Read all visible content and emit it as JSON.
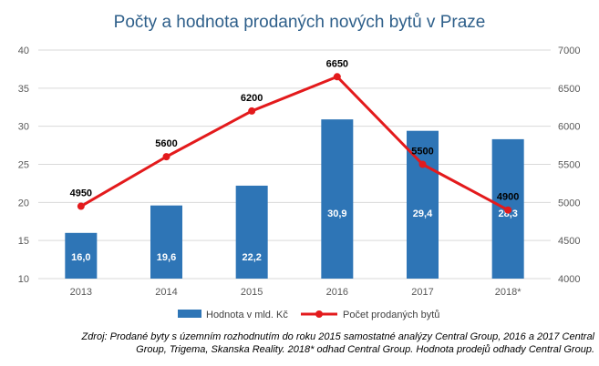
{
  "chart_data": {
    "type": "bar+line",
    "title": "Počty a hodnota prodaných nových bytů v Praze",
    "categories": [
      "2013",
      "2014",
      "2015",
      "2016",
      "2017",
      "2018*"
    ],
    "series": [
      {
        "name": "Hodnota v mld. Kč",
        "type": "bar",
        "axis": "left",
        "values": [
          16.0,
          19.6,
          22.2,
          30.9,
          29.4,
          28.3
        ],
        "labels": [
          "16,0",
          "19,6",
          "22,2",
          "30,9",
          "29,4",
          "28,3"
        ],
        "color": "#2e75b6"
      },
      {
        "name": "Počet prodaných bytů",
        "type": "line",
        "axis": "right",
        "values": [
          4950,
          5600,
          6200,
          6650,
          5500,
          4900
        ],
        "labels": [
          "4950",
          "5600",
          "6200",
          "6650",
          "5500",
          "4900"
        ],
        "color": "#e31a1c"
      }
    ],
    "y_left": {
      "min": 10,
      "max": 40,
      "ticks": [
        "10",
        "15",
        "20",
        "25",
        "30",
        "35",
        "40"
      ]
    },
    "y_right": {
      "min": 4000,
      "max": 7000,
      "ticks": [
        "4000",
        "4500",
        "5000",
        "5500",
        "6000",
        "6500",
        "7000"
      ]
    },
    "grid": true,
    "legend": "bottom"
  },
  "source_note": [
    "Zdroj: Prodané byty s územním rozhodnutím do roku 2015 samostatné analýzy Central Group, 2016 a 2017 Central",
    "Group, Trigema, Skanska Reality. 2018* odhad Central Group. Hodnota prodejů odhady Central Group."
  ]
}
